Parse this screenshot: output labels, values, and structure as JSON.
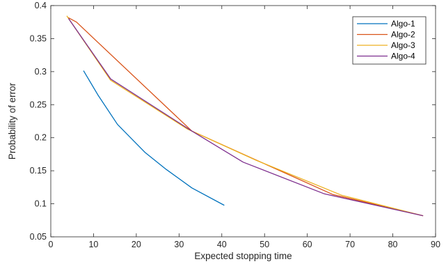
{
  "chart_data": {
    "type": "line",
    "title": "",
    "xlabel": "Expected stopping time",
    "ylabel": "Probability of error",
    "xlim": [
      0,
      90
    ],
    "ylim": [
      0.05,
      0.4
    ],
    "xticks": [
      0,
      10,
      20,
      30,
      40,
      50,
      60,
      70,
      80,
      90
    ],
    "yticks": [
      0.05,
      0.1,
      0.15,
      0.2,
      0.25,
      0.3,
      0.35,
      0.4
    ],
    "grid": false,
    "legend_position": "top-right",
    "series": [
      {
        "name": "Algo-1",
        "color": "#0072BD",
        "x": [
          7.7,
          11.0,
          15.6,
          22.0,
          27.0,
          33.0,
          40.5
        ],
        "y": [
          0.301,
          0.265,
          0.22,
          0.178,
          0.152,
          0.124,
          0.098
        ]
      },
      {
        "name": "Algo-2",
        "color": "#D95319",
        "x": [
          4.0,
          6.0,
          33.0,
          66.0,
          87.0
        ],
        "y": [
          0.382,
          0.375,
          0.21,
          0.114,
          0.082
        ]
      },
      {
        "name": "Algo-3",
        "color": "#EDB120",
        "x": [
          3.8,
          14.0,
          32.0,
          48.0,
          68.0,
          87.0
        ],
        "y": [
          0.384,
          0.287,
          0.213,
          0.166,
          0.113,
          0.082
        ]
      },
      {
        "name": "Algo-4",
        "color": "#7E2F8E",
        "x": [
          4.2,
          14.0,
          33.0,
          45.0,
          64.0,
          87.0
        ],
        "y": [
          0.38,
          0.289,
          0.21,
          0.163,
          0.115,
          0.082
        ]
      }
    ]
  }
}
